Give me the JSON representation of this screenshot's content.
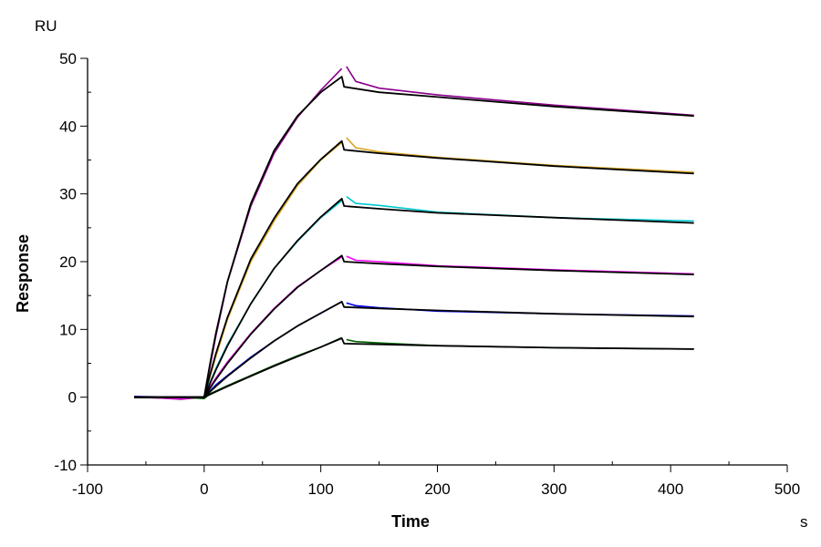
{
  "chart_data": {
    "type": "line",
    "title": "",
    "xlabel": "Time",
    "ylabel": "Response",
    "x_unit": "s",
    "y_unit": "RU",
    "xlim": [
      -100,
      500
    ],
    "ylim": [
      -10,
      50
    ],
    "x_ticks": [
      -100,
      0,
      100,
      200,
      300,
      400,
      500
    ],
    "y_ticks": [
      -10,
      0,
      10,
      20,
      30,
      40,
      50
    ],
    "grid": false,
    "legend": "none",
    "fit_color": "#000000",
    "fit_x": [
      -60,
      0,
      5,
      10,
      20,
      40,
      60,
      80,
      100,
      118,
      120,
      150,
      200,
      300,
      420
    ],
    "data_x": [
      -60,
      -20,
      0,
      5,
      10,
      20,
      40,
      60,
      80,
      100,
      118,
      122,
      130,
      150,
      200,
      300,
      420
    ],
    "series": [
      {
        "color": "#8B008B",
        "data": [
          0.1,
          -0.3,
          0,
          4.5,
          9,
          17,
          28.2,
          36,
          41.3,
          45.3,
          48.5,
          48.8,
          46.6,
          45.6,
          44.6,
          43.1,
          41.6
        ],
        "fit": [
          0,
          0,
          4.9,
          9.4,
          17.1,
          28.6,
          36.4,
          41.5,
          45.0,
          47.3,
          45.8,
          45.0,
          44.3,
          42.9,
          41.5
        ]
      },
      {
        "color": "#DAA520",
        "data": [
          0,
          -0.2,
          0,
          3,
          6,
          11.5,
          20,
          26,
          31.2,
          35,
          37.6,
          38.3,
          36.8,
          36.2,
          35.4,
          34.2,
          33.2
        ],
        "fit": [
          0,
          0,
          3.3,
          6.4,
          11.8,
          20.4,
          26.4,
          31.5,
          35.1,
          37.8,
          36.5,
          36.0,
          35.3,
          34.1,
          33.0
        ]
      },
      {
        "color": "#00C8D0",
        "data": [
          0,
          -0.1,
          0,
          2.2,
          4.2,
          7.8,
          13.8,
          19,
          23,
          26.5,
          29,
          29.6,
          28.6,
          28.3,
          27.3,
          26.5,
          26.0
        ],
        "fit": [
          0,
          0,
          2.0,
          4.0,
          7.6,
          13.8,
          19.0,
          23.1,
          26.6,
          29.3,
          28.2,
          27.8,
          27.2,
          26.5,
          25.7
        ]
      },
      {
        "color": "#FF00FF",
        "data": [
          0,
          -0.2,
          0,
          1.5,
          2.8,
          5.2,
          9.4,
          13.1,
          16.3,
          18.7,
          20.7,
          20.8,
          20.2,
          20.0,
          19.4,
          18.8,
          18.2
        ],
        "fit": [
          0,
          0,
          1.3,
          2.6,
          5.0,
          9.3,
          13.0,
          16.2,
          18.7,
          20.9,
          20.0,
          19.7,
          19.3,
          18.7,
          18.1
        ]
      },
      {
        "color": "#0000FF",
        "data": [
          0.1,
          0,
          0,
          0.9,
          1.8,
          3.2,
          5.9,
          8.3,
          10.5,
          12.4,
          14.1,
          13.9,
          13.5,
          13.2,
          12.7,
          12.3,
          12.0
        ],
        "fit": [
          0,
          0,
          0.8,
          1.6,
          3.1,
          5.8,
          8.3,
          10.5,
          12.4,
          14.1,
          13.3,
          13.1,
          12.8,
          12.3,
          11.9
        ]
      },
      {
        "color": "#006400",
        "data": [
          0,
          0,
          -0.2,
          0.5,
          0.9,
          1.7,
          3.2,
          4.7,
          6.1,
          7.4,
          8.8,
          8.5,
          8.2,
          8.0,
          7.6,
          7.3,
          7.1
        ],
        "fit": [
          0,
          0,
          0.4,
          0.8,
          1.6,
          3.1,
          4.6,
          6.0,
          7.4,
          8.7,
          7.9,
          7.8,
          7.6,
          7.3,
          7.1
        ]
      }
    ]
  }
}
